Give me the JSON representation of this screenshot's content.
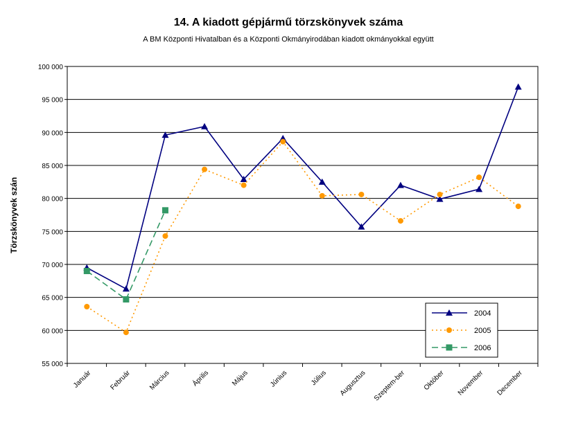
{
  "chart_data": {
    "type": "line",
    "title": "14. A  kiadott gépjármű  törzskönyvek száma",
    "subtitle": "A BM Központi Hivatalban és a Központi Okmányirodában kiadott okmányokkal együtt",
    "xlabel": "",
    "ylabel": "Törzskönyvek szán",
    "categories": [
      "Január",
      "Február",
      "Március",
      "Április",
      "Május",
      "Június",
      "Július",
      "Augusztus",
      "Szeptem-ber",
      "Október",
      "November",
      "December"
    ],
    "ylim": [
      55000,
      100000
    ],
    "yticks": [
      "55 000",
      "60 000",
      "65 000",
      "70 000",
      "75 000",
      "80 000",
      "85 000",
      "90 000",
      "95 000",
      "100 000"
    ],
    "grid": true,
    "legend_position": "bottom-right",
    "series": [
      {
        "name": "2004",
        "color": "#000080",
        "line": "solid",
        "marker": "triangle",
        "values": [
          69500,
          66300,
          89600,
          90900,
          82900,
          89100,
          82500,
          75700,
          82000,
          79900,
          81400,
          96900
        ]
      },
      {
        "name": "2005",
        "color": "#ff9900",
        "line": "dotted",
        "marker": "circle",
        "values": [
          63600,
          59700,
          74300,
          84400,
          82000,
          88600,
          80400,
          80600,
          76600,
          80600,
          83200,
          78800
        ]
      },
      {
        "name": "2006",
        "color": "#339966",
        "line": "dashed",
        "marker": "square",
        "values": [
          69000,
          64700,
          78200,
          null,
          null,
          null,
          null,
          null,
          null,
          null,
          null,
          null
        ]
      }
    ]
  }
}
